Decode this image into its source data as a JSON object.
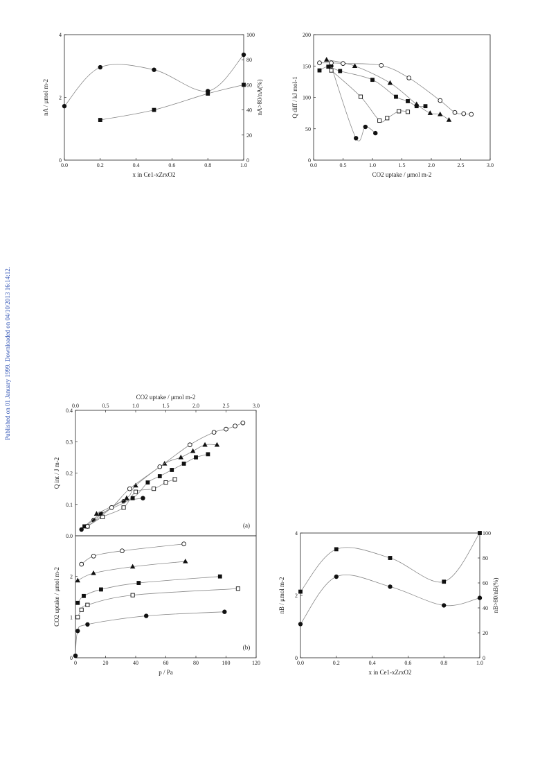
{
  "side_note": "Published on 01 January 1999. Downloaded on 04/10/2013 16:14:12.",
  "chart_data": [
    {
      "id": "ce-zr-na",
      "type": "scatter",
      "xlabel": "x in Ce1-xZrxO2",
      "ylabel_left": "nA / μmol m-2",
      "ylabel_right": "nA>80/nA(%)",
      "xlim": [
        0,
        1.0
      ],
      "ylim_left": [
        0,
        4
      ],
      "ylim_right": [
        0,
        100
      ],
      "xticks": [
        "0.0",
        "0.2",
        "0.4",
        "0.6",
        "0.8",
        "1.0"
      ],
      "yticks_left": [
        "0",
        "2",
        "4"
      ],
      "yticks_right": [
        "0",
        "20",
        "40",
        "60",
        "80",
        "100"
      ],
      "series": [
        {
          "marker": "filled-circle",
          "axis": "right",
          "x": [
            0.0,
            0.2,
            0.5,
            0.8,
            1.0
          ],
          "y": [
            43,
            74,
            72,
            55,
            84
          ]
        },
        {
          "marker": "filled-square",
          "axis": "right",
          "x": [
            0.2,
            0.5,
            0.8,
            1.0
          ],
          "y": [
            32,
            40,
            53,
            60
          ]
        }
      ]
    },
    {
      "id": "qdiff-uptake",
      "type": "scatter",
      "xlabel": "CO2 uptake / μmol m-2",
      "ylabel": "Q diff / kJ mol-1",
      "xlim": [
        0,
        3.0
      ],
      "ylim": [
        0,
        200
      ],
      "xticks": [
        "0.0",
        "0.5",
        "1.0",
        "1.5",
        "2.0",
        "2.5",
        "3.0"
      ],
      "yticks": [
        "0",
        "50",
        "100",
        "150",
        "200"
      ],
      "series": [
        {
          "marker": "filled-circle",
          "x": [
            0.3,
            0.72,
            0.88,
            1.05
          ],
          "y": [
            150,
            35,
            53,
            43
          ]
        },
        {
          "marker": "open-square",
          "x": [
            0.3,
            0.8,
            1.12,
            1.25,
            1.45,
            1.6
          ],
          "y": [
            143,
            101,
            63,
            67,
            78,
            77
          ]
        },
        {
          "marker": "filled-square",
          "x": [
            0.1,
            0.25,
            0.45,
            1.0,
            1.4,
            1.6,
            1.75,
            1.9
          ],
          "y": [
            143,
            149,
            142,
            128,
            101,
            94,
            86,
            86
          ]
        },
        {
          "marker": "filled-triangle",
          "x": [
            0.22,
            0.7,
            1.3,
            1.75,
            1.98,
            2.15,
            2.3
          ],
          "y": [
            160,
            150,
            123,
            89,
            75,
            73,
            64
          ]
        },
        {
          "marker": "open-circle",
          "x": [
            0.1,
            0.3,
            0.5,
            1.15,
            1.62,
            2.15,
            2.4,
            2.55,
            2.68
          ],
          "y": [
            155,
            155,
            154,
            151,
            131,
            95,
            76,
            74,
            73
          ]
        }
      ]
    },
    {
      "id": "qint-uptake-a",
      "type": "scatter",
      "panel_label": "(a)",
      "xlabel_top": "CO2 uptake / μmol m-2",
      "ylabel": "Q int / J m-2",
      "xlim": [
        0,
        3.0
      ],
      "ylim": [
        0,
        0.4
      ],
      "xticks": [
        "0.0",
        "0.5",
        "1.0",
        "1.5",
        "2.0",
        "2.5",
        "3.0"
      ],
      "yticks": [
        "0.0",
        "0.1",
        "0.2",
        "0.3",
        "0.4"
      ],
      "series": [
        {
          "marker": "filled-circle",
          "x": [
            0.1,
            0.3,
            0.6,
            0.8,
            1.12
          ],
          "y": [
            0.02,
            0.05,
            0.09,
            0.11,
            0.12
          ]
        },
        {
          "marker": "open-square",
          "x": [
            0.2,
            0.45,
            0.8,
            1.0,
            1.3,
            1.5,
            1.65
          ],
          "y": [
            0.03,
            0.06,
            0.09,
            0.14,
            0.15,
            0.17,
            0.18
          ]
        },
        {
          "marker": "filled-square",
          "x": [
            0.15,
            0.42,
            0.95,
            1.2,
            1.4,
            1.6,
            1.8,
            2.0,
            2.2
          ],
          "y": [
            0.03,
            0.07,
            0.12,
            0.17,
            0.19,
            0.21,
            0.23,
            0.25,
            0.26
          ]
        },
        {
          "marker": "filled-triangle",
          "x": [
            0.35,
            0.85,
            1.0,
            1.48,
            1.75,
            1.95,
            2.15,
            2.35
          ],
          "y": [
            0.07,
            0.12,
            0.16,
            0.23,
            0.25,
            0.27,
            0.29,
            0.29
          ]
        },
        {
          "marker": "open-circle",
          "x": [
            0.2,
            0.6,
            0.9,
            1.4,
            1.9,
            2.3,
            2.5,
            2.65,
            2.78
          ],
          "y": [
            0.03,
            0.09,
            0.15,
            0.22,
            0.29,
            0.33,
            0.34,
            0.35,
            0.36
          ]
        }
      ]
    },
    {
      "id": "uptake-pressure-b",
      "type": "scatter",
      "panel_label": "(b)",
      "xlabel": "p / Pa",
      "ylabel": "CO2 uptake / μmol m-2",
      "xlim": [
        0,
        120
      ],
      "ylim": [
        0,
        3.0
      ],
      "xticks": [
        "0",
        "20",
        "40",
        "60",
        "80",
        "100",
        "120"
      ],
      "yticks": [
        "0",
        "1",
        "2"
      ],
      "series": [
        {
          "marker": "filled-circle",
          "x": [
            0,
            1.5,
            8,
            47,
            99
          ],
          "y": [
            0.05,
            0.66,
            0.82,
            1.03,
            1.13
          ]
        },
        {
          "marker": "open-square",
          "x": [
            1.5,
            4,
            8,
            38,
            108
          ],
          "y": [
            1.0,
            1.18,
            1.3,
            1.54,
            1.7
          ]
        },
        {
          "marker": "filled-square",
          "x": [
            1.5,
            5.5,
            17,
            42,
            96
          ],
          "y": [
            1.35,
            1.52,
            1.68,
            1.84,
            2.0
          ]
        },
        {
          "marker": "filled-triangle",
          "x": [
            1.5,
            12,
            38,
            73
          ],
          "y": [
            1.9,
            2.08,
            2.24,
            2.37
          ]
        },
        {
          "marker": "open-circle",
          "x": [
            4,
            12,
            31,
            72
          ],
          "y": [
            2.3,
            2.5,
            2.63,
            2.8
          ]
        }
      ]
    },
    {
      "id": "ce-zr-nb",
      "type": "scatter",
      "xlabel": "x in Ce1-xZrxO2",
      "ylabel_left": "nB / μmol m-2",
      "ylabel_right": "nB>80/nB(%)",
      "xlim": [
        0,
        1.0
      ],
      "ylim_left": [
        0,
        4
      ],
      "ylim_right": [
        0,
        100
      ],
      "xticks": [
        "0.0",
        "0.2",
        "0.4",
        "0.6",
        "0.8",
        "1.0"
      ],
      "yticks_left": [
        "0",
        "2",
        "4"
      ],
      "yticks_right": [
        "0",
        "20",
        "40",
        "60",
        "80",
        "100"
      ],
      "series": [
        {
          "marker": "filled-square",
          "axis": "right",
          "x": [
            0.0,
            0.2,
            0.5,
            0.8,
            1.0
          ],
          "y": [
            53,
            87,
            80,
            61,
            100
          ]
        },
        {
          "marker": "filled-circle",
          "axis": "right",
          "x": [
            0.0,
            0.2,
            0.5,
            0.8,
            1.0
          ],
          "y": [
            27,
            65,
            57,
            42,
            48
          ]
        }
      ]
    }
  ]
}
